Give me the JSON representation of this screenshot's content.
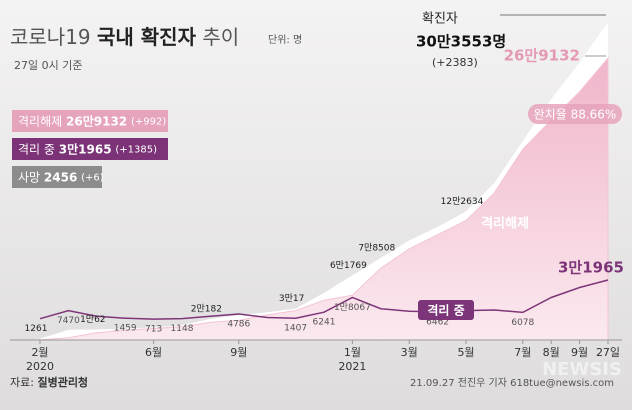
{
  "chart_data": {
    "type": "area",
    "title": [
      "코로나19",
      "국내 확진자",
      "추이"
    ],
    "unit": "단위: 명",
    "subtitle": "27일 0시 기준",
    "categories": [
      "2월",
      null,
      null,
      null,
      "6월",
      null,
      null,
      "9월",
      null,
      null,
      null,
      "1월",
      null,
      "3월",
      null,
      "5월",
      null,
      "7월",
      "8월",
      "9월",
      "27일"
    ],
    "year_labels": [
      "2020",
      null,
      null,
      null,
      null,
      null,
      null,
      null,
      null,
      null,
      null,
      "2021",
      null,
      null,
      null,
      null,
      null,
      null,
      null,
      null,
      null
    ],
    "series": [
      {
        "name": "확진자",
        "color": "#ffffff",
        "values": [
          1261,
          9786,
          10062,
          11000,
          12000,
          14000,
          20182,
          23800,
          26500,
          30017,
          45000,
          61769,
          78508,
          95000,
          108000,
          122634,
          150000,
          190000,
          230000,
          265000,
          303553
        ],
        "value_labels": [
          "1261",
          null,
          "1만62",
          null,
          null,
          null,
          "2만182",
          null,
          null,
          "3만17",
          null,
          "6만1769",
          "7만8508",
          null,
          null,
          "12만2634",
          null,
          null,
          null,
          null,
          null
        ]
      },
      {
        "name": "격리해제",
        "color": "#f3c3d4",
        "values": [
          200,
          2200,
          6900,
          9300,
          11000,
          12600,
          16900,
          18700,
          24000,
          28100,
          38000,
          42800,
          68500,
          87000,
          100500,
          114000,
          140500,
          182000,
          210000,
          237000,
          269132
        ],
        "value_labels": [
          null,
          null,
          null,
          null,
          null,
          null,
          null,
          null,
          null,
          null,
          null,
          null,
          null,
          null,
          null,
          null,
          null,
          null,
          null,
          null,
          "26만9132"
        ]
      },
      {
        "name": "격리 중",
        "color": "#7d3579",
        "values": [
          1000,
          7470,
          3000,
          1459,
          713,
          1148,
          3000,
          4786,
          2000,
          1407,
          6241,
          18067,
          9000,
          7000,
          6462,
          7500,
          8000,
          6078,
          18000,
          26000,
          31965
        ],
        "value_labels": [
          null,
          "7470",
          null,
          "1459",
          "713",
          "1148",
          null,
          "4786",
          null,
          "1407",
          "6241",
          "1만8067",
          null,
          null,
          "6462",
          null,
          null,
          "6078",
          null,
          null,
          "3만1965"
        ]
      }
    ],
    "callout": {
      "label": "확진자",
      "value": "30만3553명",
      "change": "(+2383)"
    },
    "recovery_rate": "완치율 88.66%",
    "legend": [
      {
        "label": "격리해제",
        "value": "26만9132",
        "change": "(+992)",
        "color": "#e6a3bc"
      },
      {
        "label": "격리 중",
        "value": "3만1965",
        "change": "(+1385)",
        "color": "#7b3276"
      },
      {
        "label": "사망",
        "value": "2456",
        "change": "(+6)",
        "color": "#8c8c8c"
      }
    ],
    "source_label": "자료:",
    "source": "질병관리청",
    "credit": "21.09.27 전진우 기자 618tue@newsis.com",
    "watermark": "NEWSIS"
  }
}
